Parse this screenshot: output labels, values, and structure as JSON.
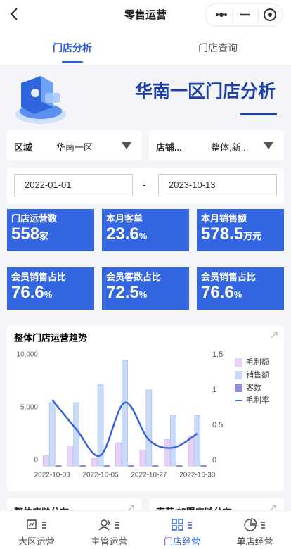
{
  "header": {
    "title": "零售运营"
  },
  "tabs": [
    {
      "label": "门店分析",
      "active": true
    },
    {
      "label": "门店查询",
      "active": false
    }
  ],
  "banner": {
    "title": "华南一区门店分析"
  },
  "filters": [
    {
      "label": "区域",
      "value": "华南一区"
    },
    {
      "label": "店铺...",
      "value": "整体,新..."
    }
  ],
  "date_range": {
    "start": "2022-01-01",
    "separator": "-",
    "end": "2023-10-13"
  },
  "kpis": [
    {
      "label": "门店运营数",
      "value": 558,
      "unit": "家"
    },
    {
      "label": "本月客单",
      "value": 23.6,
      "unit": "%"
    },
    {
      "label": "本月销售额",
      "value": 578.5,
      "unit": "万元"
    },
    {
      "label": "会员销售占比",
      "value": 76.6,
      "unit": "%"
    },
    {
      "label": "会员客数占比",
      "value": 72.5,
      "unit": "%"
    },
    {
      "label": "会员销售占比",
      "value": 76.6,
      "unit": "%"
    }
  ],
  "chart_data": {
    "type": "bar",
    "title": "整体门店运营趋势",
    "categories": [
      "2022-10-03",
      null,
      "2022-10-05",
      null,
      "2022-10-27",
      null,
      "2022-10-30"
    ],
    "series": [
      {
        "name": "毛利额",
        "color": "#e6d3f7",
        "stroke": "#c9a9ea",
        "values": [
          1000,
          1900,
          700,
          2200,
          1500,
          2500,
          2800
        ]
      },
      {
        "name": "销售额",
        "color": "#c9dbf8",
        "stroke": "#9ab9ec",
        "values": [
          6000,
          6000,
          7700,
          10000,
          7200,
          4800,
          4800
        ]
      },
      {
        "name": "客数",
        "color": "#8c8fd8",
        "stroke": "#8c8fd8",
        "values": [
          50,
          50,
          50,
          50,
          50,
          50,
          50
        ]
      },
      {
        "name": "毛利率",
        "color": "#3a63e0",
        "type": "line",
        "axis": "y2",
        "values": [
          0.94,
          0.52,
          0.15,
          0.9,
          0.37,
          0.26,
          0.46
        ]
      }
    ],
    "ylim": [
      0,
      10000
    ],
    "yticks": [
      0,
      {
        "value": 5000,
        "label": "5,000"
      },
      {
        "value": 10000,
        "label": "10,000"
      }
    ],
    "y2lim": [
      0,
      1.5
    ],
    "y2ticks": [
      0,
      0.5,
      1,
      1.5
    ],
    "legend": "right"
  },
  "cards": [
    {
      "title": "整体店龄分布"
    },
    {
      "title": "直营/加盟店龄分布"
    }
  ],
  "nav": [
    {
      "label": "大区运营",
      "active": false
    },
    {
      "label": "主管运营",
      "active": false
    },
    {
      "label": "门店经营",
      "active": true
    },
    {
      "label": "单店经营",
      "active": false
    }
  ]
}
